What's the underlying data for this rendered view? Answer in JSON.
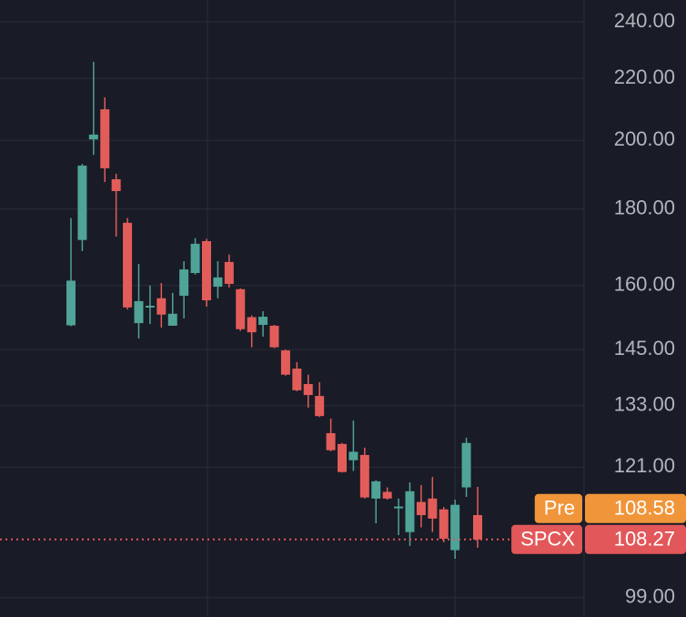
{
  "chart_data": {
    "type": "candlestick",
    "log_scale": true,
    "grid": true,
    "ylim": [
      96.1,
      248.2
    ],
    "yticks": [
      {
        "value": 240,
        "label": "240.00"
      },
      {
        "value": 220,
        "label": "220.00"
      },
      {
        "value": 200,
        "label": "200.00"
      },
      {
        "value": 180,
        "label": "180.00"
      },
      {
        "value": 160,
        "label": "160.00"
      },
      {
        "value": 145,
        "label": "145.00"
      },
      {
        "value": 133,
        "label": "133.00"
      },
      {
        "value": 121,
        "label": "121.00"
      },
      {
        "value": 99,
        "label": "99.00"
      }
    ],
    "up_color": "#4fa397",
    "down_color": "#e25d5a",
    "open": [
      150.5,
      171.6,
      200.3,
      209.8,
      188.4,
      176.2,
      151.0,
      154.7,
      156.9,
      150.4,
      157.5,
      163.1,
      171.3,
      159.7,
      165.9,
      159.1,
      152.4,
      150.6,
      150.4,
      144.8,
      140.8,
      137.5,
      135.0,
      127.5,
      125.4,
      122.3,
      123.3,
      115.3,
      116.5,
      113.6,
      109.5,
      114.7,
      115.3,
      113.4,
      106.5,
      117.3,
      112.4
    ],
    "high": [
      177.5,
      192.9,
      225.7,
      213.7,
      190.0,
      177.5,
      165.4,
      160.0,
      160.6,
      158.2,
      166.1,
      172.1,
      171.9,
      166.1,
      167.8,
      159.3,
      152.8,
      153.8,
      150.6,
      145.0,
      142.2,
      139.5,
      137.9,
      130.4,
      125.6,
      130.0,
      124.7,
      118.6,
      117.3,
      115.3,
      118.2,
      117.7,
      119.2,
      113.8,
      115.1,
      126.6,
      117.4
    ],
    "low": [
      150.3,
      168.7,
      195.6,
      187.6,
      172.5,
      154.2,
      147.5,
      150.8,
      150.0,
      150.4,
      152.1,
      162.7,
      154.9,
      156.9,
      159.5,
      149.2,
      145.5,
      147.9,
      145.3,
      139.3,
      136.0,
      132.6,
      130.7,
      124.0,
      120.0,
      120.3,
      115.3,
      111.0,
      115.1,
      109.0,
      107.2,
      110.3,
      109.5,
      107.8,
      105.1,
      115.6,
      106.9
    ],
    "close": [
      161.2,
      192.4,
      201.8,
      191.6,
      185.0,
      154.7,
      156.2,
      155.1,
      153.0,
      153.2,
      164.0,
      170.6,
      156.4,
      162.0,
      160.4,
      149.6,
      148.9,
      152.5,
      145.5,
      139.5,
      136.2,
      135.2,
      130.9,
      124.2,
      120.1,
      123.9,
      115.5,
      118.4,
      115.3,
      113.9,
      116.6,
      112.4,
      111.8,
      108.4,
      114.2,
      125.6,
      108.27
    ],
    "price_tags": [
      {
        "name": "Pre",
        "value": 108.58,
        "color": "#f0953a"
      },
      {
        "name": "SPCX",
        "value": 108.27,
        "color": "#e2585a"
      }
    ]
  }
}
